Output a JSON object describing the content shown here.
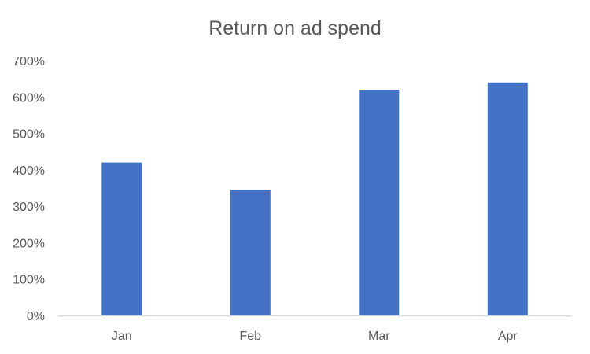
{
  "chart_data": {
    "type": "bar",
    "title": "Return on ad spend",
    "xlabel": "",
    "ylabel": "",
    "categories": [
      "Jan",
      "Feb",
      "Mar",
      "Apr"
    ],
    "values": [
      4.2,
      3.45,
      6.2,
      6.4
    ],
    "value_format": "percent",
    "ylim": [
      0,
      7
    ],
    "yticks": [
      0,
      1,
      2,
      3,
      4,
      5,
      6,
      7
    ],
    "ytick_labels": [
      "0%",
      "100%",
      "200%",
      "300%",
      "400%",
      "500%",
      "600%",
      "700%"
    ],
    "grid": false,
    "legend": "none",
    "colors": {
      "bar": "#4472C4",
      "axis_line": "#D9D9D9",
      "text": "#595959"
    }
  }
}
